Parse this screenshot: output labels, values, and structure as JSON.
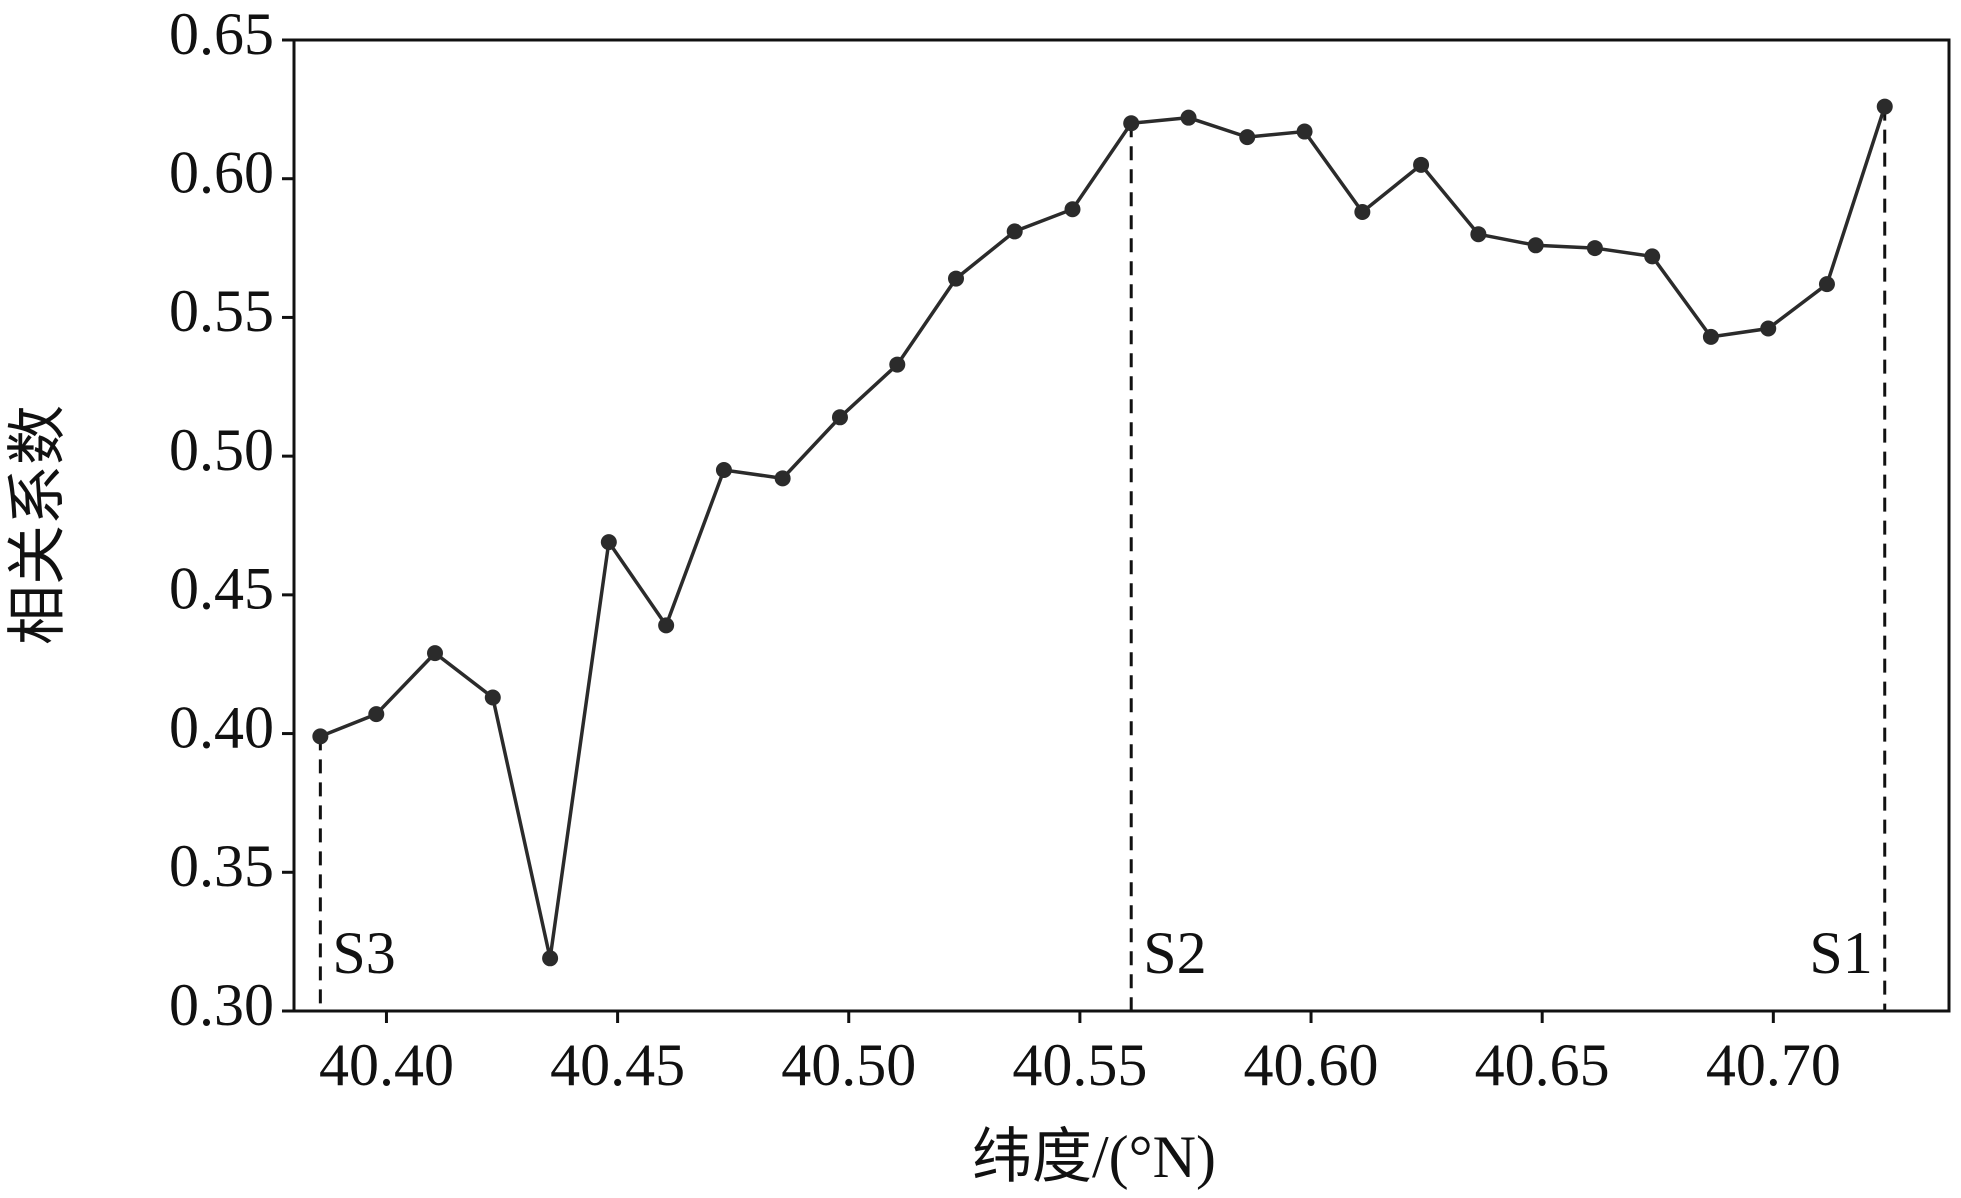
{
  "chart_data": {
    "type": "line",
    "xlabel": "纬度/(°N)",
    "ylabel": "相关系数",
    "x": [
      40.3857,
      40.3978,
      40.4105,
      40.423,
      40.4354,
      40.4481,
      40.4605,
      40.473,
      40.4857,
      40.4981,
      40.5105,
      40.5232,
      40.5359,
      40.5484,
      40.5611,
      40.5735,
      40.5862,
      40.5986,
      40.6111,
      40.6238,
      40.6362,
      40.6486,
      40.6614,
      40.6738,
      40.6865,
      40.6989,
      40.7116,
      40.7241
    ],
    "series": [
      {
        "color": "#2b2b2b",
        "values": [
          0.399,
          0.407,
          0.429,
          0.413,
          0.319,
          0.469,
          0.439,
          0.495,
          0.492,
          0.514,
          0.533,
          0.564,
          0.581,
          0.589,
          0.62,
          0.622,
          0.615,
          0.617,
          0.588,
          0.605,
          0.58,
          0.576,
          0.575,
          0.572,
          0.543,
          0.546,
          0.562,
          0.626
        ]
      }
    ],
    "xlim": [
      40.38,
      40.738
    ],
    "ylim": [
      0.3,
      0.65
    ],
    "xticks": [
      {
        "value": 40.4,
        "label": "40.40"
      },
      {
        "value": 40.45,
        "label": "40.45"
      },
      {
        "value": 40.5,
        "label": "40.50"
      },
      {
        "value": 40.55,
        "label": "40.55"
      },
      {
        "value": 40.6,
        "label": "40.60"
      },
      {
        "value": 40.65,
        "label": "40.65"
      },
      {
        "value": 40.7,
        "label": "40.70"
      }
    ],
    "yticks": [
      {
        "value": 0.3,
        "label": "0.30"
      },
      {
        "value": 0.35,
        "label": "0.35"
      },
      {
        "value": 0.4,
        "label": "0.40"
      },
      {
        "value": 0.45,
        "label": "0.45"
      },
      {
        "value": 0.5,
        "label": "0.50"
      },
      {
        "value": 0.55,
        "label": "0.55"
      },
      {
        "value": 0.6,
        "label": "0.60"
      },
      {
        "value": 0.65,
        "label": "0.65"
      }
    ],
    "annotations": [
      {
        "label": "S3",
        "x": 40.3857,
        "y": 0.399
      },
      {
        "label": "S2",
        "x": 40.5611,
        "y": 0.62
      },
      {
        "label": "S1",
        "x": 40.7241,
        "y": 0.626
      }
    ]
  }
}
